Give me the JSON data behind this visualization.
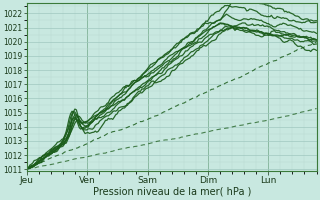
{
  "xlabel": "Pression niveau de la mer( hPa )",
  "bg_color": "#c8e8e0",
  "plot_bg_color": "#c8e8e0",
  "grid_major_color": "#a0c8c0",
  "grid_minor_color": "#b8d8d0",
  "line_color": "#1a5c1a",
  "ylim": [
    1011,
    1022.5
  ],
  "yticks": [
    1011,
    1012,
    1013,
    1014,
    1015,
    1016,
    1017,
    1018,
    1019,
    1020,
    1021,
    1022
  ],
  "day_labels": [
    "Jeu",
    "Ven",
    "Sam",
    "Dim",
    "Lun"
  ],
  "day_positions": [
    0,
    1,
    2,
    3,
    4
  ],
  "xlim": [
    0,
    4.8
  ],
  "n_points": 200
}
